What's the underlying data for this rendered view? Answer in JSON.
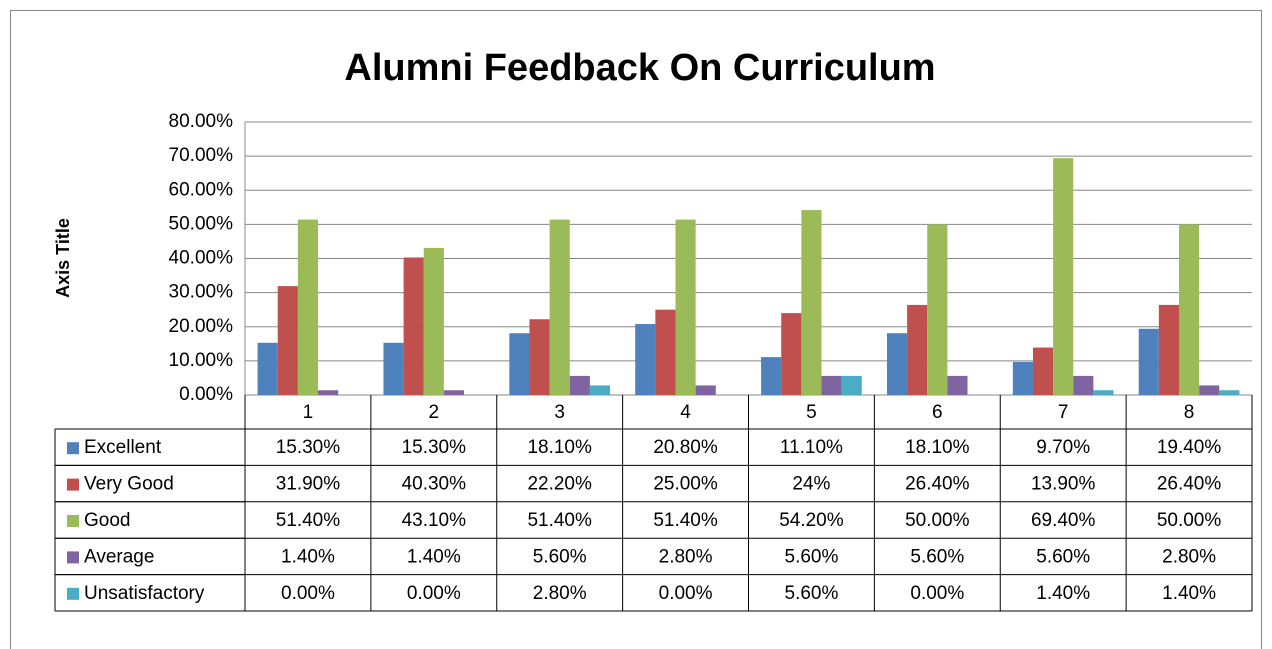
{
  "chart_data": {
    "type": "bar",
    "title": "Alumni Feedback On Curriculum",
    "y_axis_label": "Axis Title",
    "categories": [
      "1",
      "2",
      "3",
      "4",
      "5",
      "6",
      "7",
      "8"
    ],
    "series": [
      {
        "name": "Excellent",
        "color": "#4f81bd",
        "values": [
          15.3,
          15.3,
          18.1,
          20.8,
          11.1,
          18.1,
          9.7,
          19.4
        ],
        "value_labels": [
          "15.30%",
          "15.30%",
          "18.10%",
          "20.80%",
          "11.10%",
          "18.10%",
          "9.70%",
          "19.40%"
        ]
      },
      {
        "name": "Very Good",
        "color": "#c0504d",
        "values": [
          31.9,
          40.3,
          22.2,
          25.0,
          24,
          26.4,
          13.9,
          26.4
        ],
        "value_labels": [
          "31.90%",
          "40.30%",
          "22.20%",
          "25.00%",
          "24%",
          "26.40%",
          "13.90%",
          "26.40%"
        ]
      },
      {
        "name": "Good",
        "color": "#9bbb59",
        "values": [
          51.4,
          43.1,
          51.4,
          51.4,
          54.2,
          50.0,
          69.4,
          50.0
        ],
        "value_labels": [
          "51.40%",
          "43.10%",
          "51.40%",
          "51.40%",
          "54.20%",
          "50.00%",
          "69.40%",
          "50.00%"
        ]
      },
      {
        "name": "Average",
        "color": "#8064a2",
        "values": [
          1.4,
          1.4,
          5.6,
          2.8,
          5.6,
          5.6,
          5.6,
          2.8
        ],
        "value_labels": [
          "1.40%",
          "1.40%",
          "5.60%",
          "2.80%",
          "5.60%",
          "5.60%",
          "5.60%",
          "2.80%"
        ]
      },
      {
        "name": "Unsatisfactory",
        "color": "#4bacc6",
        "values": [
          0.0,
          0.0,
          2.8,
          0.0,
          5.6,
          0.0,
          1.4,
          1.4
        ],
        "value_labels": [
          "0.00%",
          "0.00%",
          "2.80%",
          "0.00%",
          "5.60%",
          "0.00%",
          "1.40%",
          "1.40%"
        ]
      }
    ],
    "ylim": [
      0,
      80
    ],
    "yticks": [
      {
        "value": 0,
        "label": "0.00%"
      },
      {
        "value": 10,
        "label": "10.00%"
      },
      {
        "value": 20,
        "label": "20.00%"
      },
      {
        "value": 30,
        "label": "30.00%"
      },
      {
        "value": 40,
        "label": "40.00%"
      },
      {
        "value": 50,
        "label": "50.00%"
      },
      {
        "value": 60,
        "label": "60.00%"
      },
      {
        "value": 70,
        "label": "70.00%"
      },
      {
        "value": 80,
        "label": "80.00%"
      }
    ],
    "grid": true,
    "legend": "table"
  }
}
